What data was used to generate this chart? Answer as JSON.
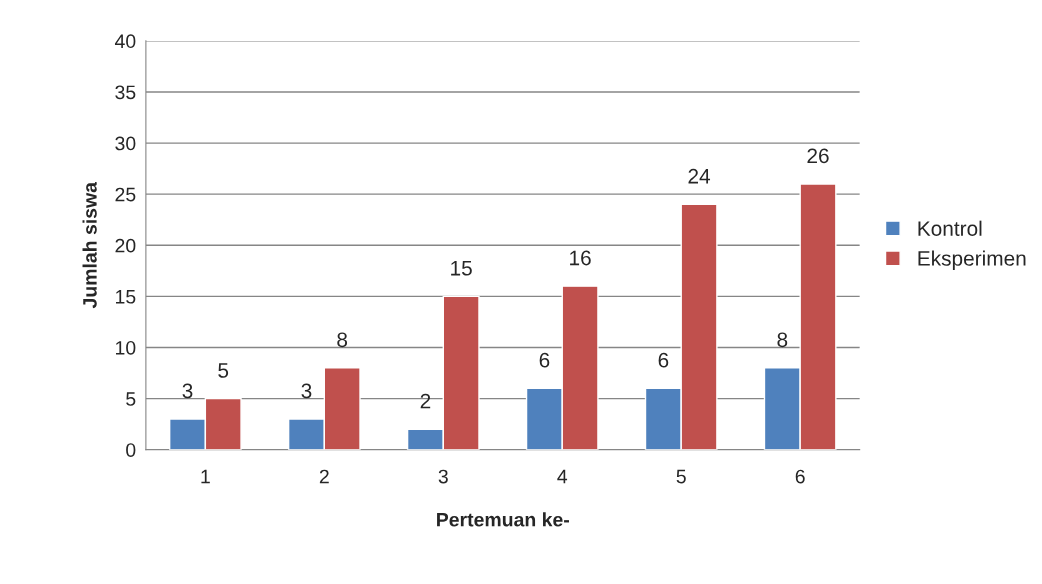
{
  "chart_data": {
    "type": "bar",
    "xlabel": "Pertemuan ke-",
    "ylabel": "Jumlah siswa",
    "categories": [
      "1",
      "2",
      "3",
      "4",
      "5",
      "6"
    ],
    "series": [
      {
        "name": "Kontrol",
        "color": "#4f81bd",
        "values": [
          3,
          3,
          2,
          6,
          6,
          8
        ]
      },
      {
        "name": "Eksperimen",
        "color": "#c0504d",
        "values": [
          5,
          8,
          15,
          16,
          24,
          26
        ]
      }
    ],
    "ylim": [
      0,
      40
    ],
    "yticks": [
      0,
      5,
      10,
      15,
      20,
      25,
      30,
      35,
      40
    ],
    "grid": "y",
    "legend": "right",
    "data_labels": true
  }
}
